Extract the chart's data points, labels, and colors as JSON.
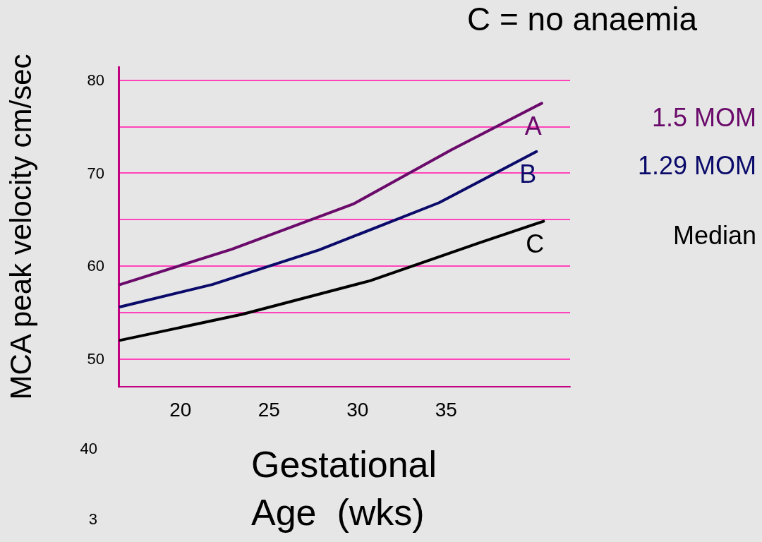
{
  "chart_data": {
    "type": "line",
    "title": "C = no anaemia",
    "xlabel": "Gestational Age  (wks)",
    "ylabel": "MCA peak velocity cm/sec",
    "xlim": [
      16.5,
      42
    ],
    "xticks": [
      20,
      25,
      30,
      35
    ],
    "ylim": [
      47,
      81.4
    ],
    "yticks": [
      {
        "value": 50,
        "label": "50"
      },
      {
        "value": 55,
        "label": null
      },
      {
        "value": 60,
        "label": "60"
      },
      {
        "value": 65,
        "label": null
      },
      {
        "value": 70,
        "label": "70"
      },
      {
        "value": 75,
        "label": null
      },
      {
        "value": 80,
        "label": "80"
      }
    ],
    "grid": "y",
    "legend": false,
    "marker": "none",
    "line_style": "solid",
    "series": [
      {
        "name": "1.5 MOM",
        "color": "#6a0a6a",
        "x": [
          16.6,
          22.9,
          29.8,
          35.3,
          40.4
        ],
        "values": [
          58.0,
          61.8,
          66.7,
          72.5,
          77.5
        ]
      },
      {
        "name": "1.29 MOM",
        "color": "#0a0a6a",
        "x": [
          16.6,
          21.8,
          27.8,
          34.6,
          40.1
        ],
        "values": [
          55.6,
          58.0,
          61.7,
          66.8,
          72.3
        ]
      },
      {
        "name": "Median",
        "color": "#000000",
        "x": [
          16.6,
          23.5,
          30.7,
          36.9,
          40.5
        ],
        "values": [
          52.0,
          54.8,
          58.4,
          62.5,
          64.8
        ]
      }
    ],
    "annotations": [
      "A",
      "B",
      "C",
      "40",
      "3"
    ]
  }
}
